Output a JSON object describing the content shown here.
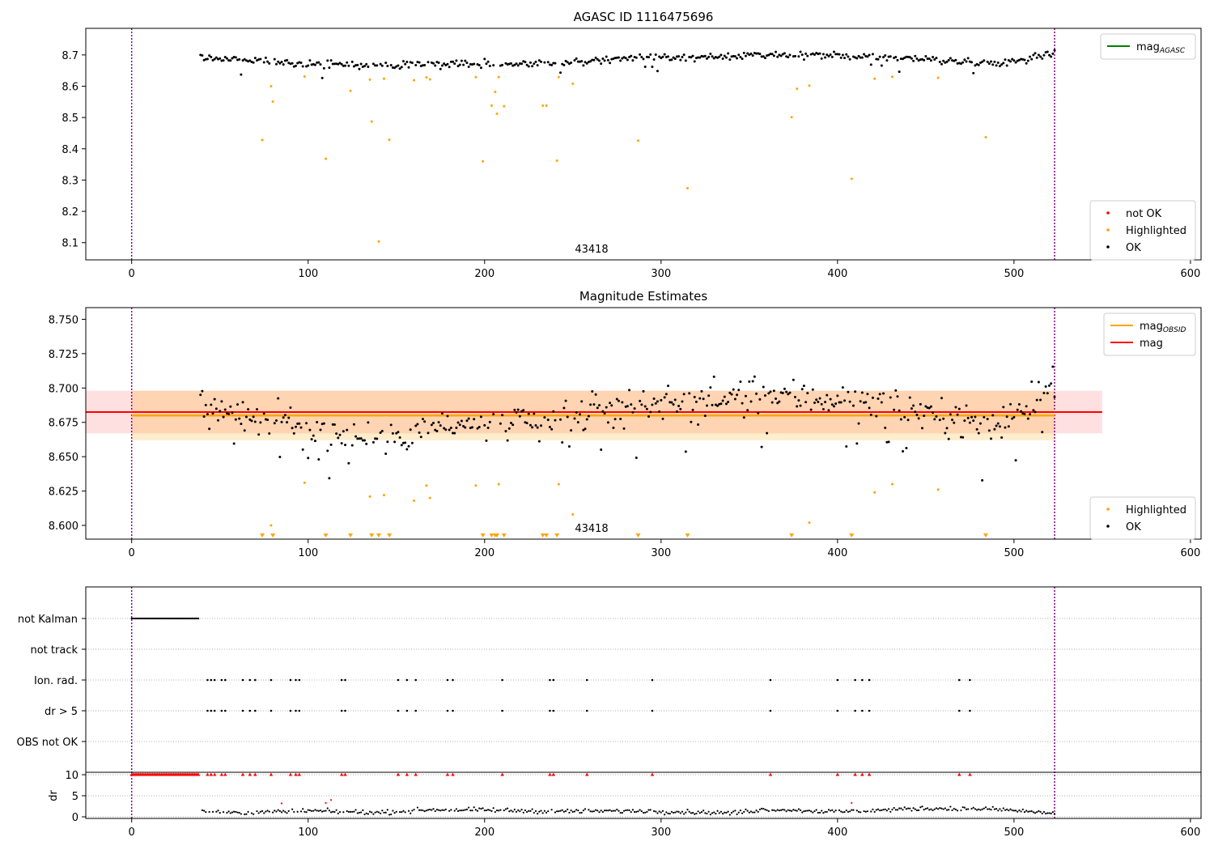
{
  "colors": {
    "ok": "#000000",
    "highlighted": "#ffa500",
    "not_ok": "#ff0000",
    "mag_agasc": "#008000",
    "mag_obsid": "#ffa500",
    "mag": "#ff0000",
    "boundary": "#800080"
  },
  "chart_data": [
    {
      "type": "scatter",
      "title": "AGASC ID 1116475696",
      "xlim": [
        -26,
        606
      ],
      "ylim": [
        8.045,
        8.785
      ],
      "x_ticks": [
        0,
        100,
        200,
        300,
        400,
        500,
        600
      ],
      "y_ticks": [
        8.1,
        8.2,
        8.3,
        8.4,
        8.5,
        8.6,
        8.7
      ],
      "grid": false,
      "obsid_label": "43418",
      "obsid_label_x": 261,
      "boundary_x": [
        0,
        523
      ],
      "ok_trend": {
        "x_range": [
          39,
          523
        ],
        "knots": [
          [
            39,
            8.695
          ],
          [
            60,
            8.685
          ],
          [
            100,
            8.672
          ],
          [
            140,
            8.664
          ],
          [
            165,
            8.672
          ],
          [
            205,
            8.672
          ],
          [
            240,
            8.672
          ],
          [
            290,
            8.693
          ],
          [
            315,
            8.69
          ],
          [
            350,
            8.697
          ],
          [
            400,
            8.697
          ],
          [
            440,
            8.69
          ],
          [
            490,
            8.672
          ],
          [
            523,
            8.705
          ]
        ]
      },
      "highlighted_points": [
        [
          74,
          8.428
        ],
        [
          79,
          8.6
        ],
        [
          80,
          8.551
        ],
        [
          98,
          8.631
        ],
        [
          110,
          8.368
        ],
        [
          124,
          8.585
        ],
        [
          135,
          8.621
        ],
        [
          136,
          8.487
        ],
        [
          140,
          8.104
        ],
        [
          143,
          8.624
        ],
        [
          146,
          8.429
        ],
        [
          160,
          8.619
        ],
        [
          167,
          8.628
        ],
        [
          169,
          8.622
        ],
        [
          195,
          8.629
        ],
        [
          199,
          8.36
        ],
        [
          204,
          8.538
        ],
        [
          206,
          8.582
        ],
        [
          207,
          8.512
        ],
        [
          208,
          8.629
        ],
        [
          211,
          8.536
        ],
        [
          233,
          8.538
        ],
        [
          235,
          8.538
        ],
        [
          241,
          8.362
        ],
        [
          242,
          8.629
        ],
        [
          250,
          8.608
        ],
        [
          287,
          8.426
        ],
        [
          315,
          8.274
        ],
        [
          374,
          8.501
        ],
        [
          377,
          8.592
        ],
        [
          384,
          8.602
        ],
        [
          408,
          8.304
        ],
        [
          421,
          8.624
        ],
        [
          431,
          8.63
        ],
        [
          457,
          8.627
        ],
        [
          484,
          8.437
        ]
      ],
      "legends": [
        {
          "position": "top-right",
          "entries": [
            {
              "label": "mag",
              "sub": "AGASC",
              "kind": "line",
              "color": "#008000"
            }
          ]
        },
        {
          "position": "bottom-right",
          "entries": [
            {
              "label": "not OK",
              "kind": "dot",
              "color": "#ff0000"
            },
            {
              "label": "Highlighted",
              "kind": "dot",
              "color": "#ffa500"
            },
            {
              "label": "OK",
              "kind": "dot",
              "color": "#000000"
            }
          ]
        }
      ]
    },
    {
      "type": "scatter",
      "title": "Magnitude Estimates",
      "xlim": [
        -26,
        606
      ],
      "ylim": [
        8.59,
        8.7585
      ],
      "x_ticks": [
        0,
        100,
        200,
        300,
        400,
        500,
        600
      ],
      "y_ticks": [
        8.6,
        8.625,
        8.65,
        8.675,
        8.7,
        8.725,
        8.75
      ],
      "grid": false,
      "obsid_label": "43418",
      "obsid_label_x": 261,
      "boundary_x": [
        0,
        523
      ],
      "mag": {
        "value": 8.6825,
        "band": [
          8.667,
          8.698
        ],
        "x_range": [
          -26,
          550
        ]
      },
      "mag_obsid": {
        "value": 8.68,
        "band": [
          8.662,
          8.698
        ],
        "x_range": [
          0,
          523
        ]
      },
      "ok_trend": {
        "x_range": [
          39,
          523
        ],
        "knots": [
          [
            39,
            8.69
          ],
          [
            60,
            8.682
          ],
          [
            100,
            8.672
          ],
          [
            140,
            8.662
          ],
          [
            165,
            8.672
          ],
          [
            205,
            8.672
          ],
          [
            240,
            8.675
          ],
          [
            290,
            8.69
          ],
          [
            315,
            8.688
          ],
          [
            350,
            8.695
          ],
          [
            400,
            8.692
          ],
          [
            440,
            8.685
          ],
          [
            490,
            8.672
          ],
          [
            523,
            8.703
          ]
        ]
      },
      "highlighted_points": [
        [
          79,
          8.6
        ],
        [
          98,
          8.631
        ],
        [
          135,
          8.621
        ],
        [
          143,
          8.622
        ],
        [
          160,
          8.618
        ],
        [
          167,
          8.629
        ],
        [
          169,
          8.62
        ],
        [
          195,
          8.629
        ],
        [
          208,
          8.63
        ],
        [
          242,
          8.63
        ],
        [
          250,
          8.608
        ],
        [
          384,
          8.602
        ],
        [
          421,
          8.624
        ],
        [
          431,
          8.63
        ],
        [
          457,
          8.626
        ]
      ],
      "clipped_points_x": [
        74,
        80,
        110,
        124,
        136,
        140,
        146,
        199,
        204,
        206,
        207,
        211,
        233,
        235,
        241,
        287,
        315,
        374,
        408,
        484
      ],
      "legends": [
        {
          "position": "top-right",
          "entries": [
            {
              "label": "mag",
              "sub": "OBSID",
              "kind": "line",
              "color": "#ffa500"
            },
            {
              "label": "mag",
              "kind": "line",
              "color": "#ff0000"
            }
          ]
        },
        {
          "position": "bottom-right",
          "entries": [
            {
              "label": "Highlighted",
              "kind": "dot",
              "color": "#ffa500"
            },
            {
              "label": "OK",
              "kind": "dot",
              "color": "#000000"
            }
          ]
        }
      ]
    },
    {
      "type": "scatter",
      "xlim": [
        -26,
        606
      ],
      "categories": [
        "not Kalman",
        "not track",
        "Ion. rad.",
        "dr > 5",
        "OBS not OK"
      ],
      "not_kalman_x_range": [
        0,
        38
      ],
      "event_x": [
        43,
        45,
        47,
        51,
        53,
        63,
        67,
        70,
        79,
        90,
        93,
        95,
        119,
        121,
        151,
        156,
        161,
        179,
        182,
        210,
        237,
        239,
        258,
        295,
        362,
        400,
        410,
        414,
        418,
        469,
        475
      ],
      "dr": {
        "ylim": [
          -0.5,
          10.5
        ],
        "y_ticks": [
          0,
          5,
          10
        ],
        "ylabel": "dr",
        "threshold": 5,
        "capped_value": 10,
        "outliers": [
          [
            85,
            3.2
          ],
          [
            110,
            3.3
          ],
          [
            113,
            4.0
          ],
          [
            408,
            3.3
          ]
        ],
        "trend": [
          [
            40,
            1.2
          ],
          [
            70,
            1.0
          ],
          [
            100,
            1.4
          ],
          [
            140,
            1.0
          ],
          [
            170,
            1.7
          ],
          [
            200,
            1.6
          ],
          [
            240,
            1.3
          ],
          [
            290,
            1.4
          ],
          [
            340,
            0.9
          ],
          [
            360,
            1.8
          ],
          [
            400,
            1.2
          ],
          [
            450,
            2.0
          ],
          [
            490,
            1.8
          ],
          [
            523,
            0.8
          ]
        ]
      },
      "x_ticks": [
        0,
        100,
        200,
        300,
        400,
        500,
        600
      ]
    }
  ]
}
